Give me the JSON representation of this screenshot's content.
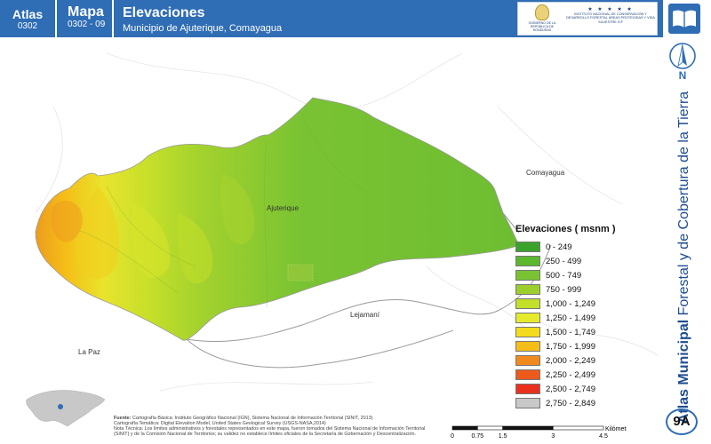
{
  "header": {
    "atlas_label": "Atlas",
    "atlas_code": "0302",
    "mapa_label": "Mapa",
    "mapa_code": "0302 - 09",
    "title": "Elevaciones",
    "subtitle": "Municipio de Ajuterique, Comayagua",
    "logo_seal_text": "GOBIERNO DE LA REPÚBLICA DE HONDURAS",
    "logo_stars": "★ ★ ★ ★ ★",
    "logo_inst_text": "INSTITUTO NACIONAL DE CONSERVACIÓN Y DESARROLLO FORESTAL ÁREAS PROTEGIDAS Y VIDA SILVESTRE ICF"
  },
  "side": {
    "north_letter": "N",
    "title_bold": "Atlas Municipal",
    "title_rest": "Forestal y de Cobertura de la Tierra",
    "code": "9A"
  },
  "map": {
    "labels": {
      "comayagua": "Comayagua",
      "ajuterique": "Ajuterique",
      "lejamani": "Lejamaní",
      "la_paz": "La Paz"
    }
  },
  "legend": {
    "title": "Elevaciones ( msnm )",
    "items": [
      {
        "label": "0 - 249",
        "color": "#3aa32c"
      },
      {
        "label": "250 - 499",
        "color": "#5db82f"
      },
      {
        "label": "500 - 749",
        "color": "#79c333"
      },
      {
        "label": "750 - 999",
        "color": "#9ccf2e"
      },
      {
        "label": "1,000 - 1,249",
        "color": "#c4df2a"
      },
      {
        "label": "1,250 - 1,499",
        "color": "#e6ea2c"
      },
      {
        "label": "1,500 - 1,749",
        "color": "#f3dc1c"
      },
      {
        "label": "1,750 - 1,999",
        "color": "#f5bd17"
      },
      {
        "label": "2,000 - 2,249",
        "color": "#f08a1c"
      },
      {
        "label": "2,250 - 2,499",
        "color": "#ec5a1c"
      },
      {
        "label": "2,500 - 2,749",
        "color": "#e8301d"
      },
      {
        "label": "2,750 - 2,849",
        "color": "#c8c8c8"
      }
    ]
  },
  "footer": {
    "fuente_label": "Fuente:",
    "line1": "Cartografía Básica: Instituto Geográfico Nacional (IGN), Sistema Nacional de Información Territorial (SINIT, 2013)",
    "line2": "Cartografía Temática: Digital Elevation Model, United States Geological Survey (USGS-NASA,2014)",
    "nota": "Nota Técnica: Los límites administrativos y forestales representados en este mapa, fueron tomados del Sistema Nacional de Información Territorial (SINIT) y de la Comisión Nacional de Territorios; su validez no establece límites oficiales de la Secretaría de Gobernación y Descentralización."
  },
  "scale": {
    "ticks": [
      "0",
      "0.75",
      "1.5",
      "3",
      "4.5"
    ],
    "unit": "Kilómetros"
  }
}
